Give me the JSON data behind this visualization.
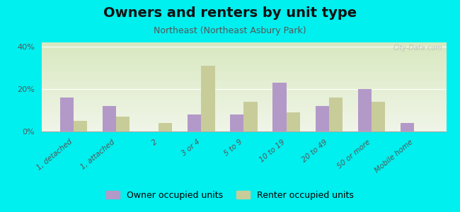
{
  "title": "Owners and renters by unit type",
  "subtitle": "Northeast (Northeast Asbury Park)",
  "categories": [
    "1, detached",
    "1, attached",
    "2",
    "3 or 4",
    "5 to 9",
    "10 to 19",
    "20 to 49",
    "50 or more",
    "Mobile home"
  ],
  "owner_values": [
    16,
    12,
    0,
    8,
    8,
    23,
    12,
    20,
    4
  ],
  "renter_values": [
    5,
    7,
    4,
    31,
    14,
    9,
    16,
    14,
    0
  ],
  "owner_color": "#b399c8",
  "renter_color": "#c8cc99",
  "background_color": "#00efef",
  "grad_top": "#d8e8c0",
  "grad_bottom": "#f0f5e8",
  "ylim": [
    0,
    42
  ],
  "yticks": [
    0,
    20,
    40
  ],
  "ytick_labels": [
    "0%",
    "20%",
    "40%"
  ],
  "title_fontsize": 14,
  "subtitle_fontsize": 9,
  "legend_labels": [
    "Owner occupied units",
    "Renter occupied units"
  ],
  "watermark": "City-Data.com"
}
